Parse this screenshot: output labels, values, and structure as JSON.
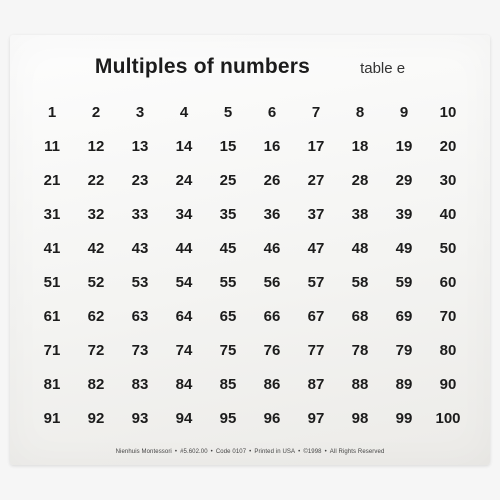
{
  "header": {
    "title": "Multiples of numbers",
    "table_label": "table e"
  },
  "grid": {
    "type": "table",
    "columns": 10,
    "rows": [
      [
        "1",
        "2",
        "3",
        "4",
        "5",
        "6",
        "7",
        "8",
        "9",
        "10"
      ],
      [
        "11",
        "12",
        "13",
        "14",
        "15",
        "16",
        "17",
        "18",
        "19",
        "20"
      ],
      [
        "21",
        "22",
        "23",
        "24",
        "25",
        "26",
        "27",
        "28",
        "29",
        "30"
      ],
      [
        "31",
        "32",
        "33",
        "34",
        "35",
        "36",
        "37",
        "38",
        "39",
        "40"
      ],
      [
        "41",
        "42",
        "43",
        "44",
        "45",
        "46",
        "47",
        "48",
        "49",
        "50"
      ],
      [
        "51",
        "52",
        "53",
        "54",
        "55",
        "56",
        "57",
        "58",
        "59",
        "60"
      ],
      [
        "61",
        "62",
        "63",
        "64",
        "65",
        "66",
        "67",
        "68",
        "69",
        "70"
      ],
      [
        "71",
        "72",
        "73",
        "74",
        "75",
        "76",
        "77",
        "78",
        "79",
        "80"
      ],
      [
        "81",
        "82",
        "83",
        "84",
        "85",
        "86",
        "87",
        "88",
        "89",
        "90"
      ],
      [
        "91",
        "92",
        "93",
        "94",
        "95",
        "96",
        "97",
        "98",
        "99",
        "100"
      ]
    ],
    "cell_fontsize": 15,
    "cell_fontweight": 700,
    "text_color": "#1c1c1c",
    "background_color": "#f7f7f5"
  },
  "footer": {
    "parts": [
      "Nienhuis Montessori",
      "#5.602.00",
      "Code 0107",
      "Printed in USA",
      "©1998",
      "All Rights Reserved"
    ],
    "separator": "•"
  }
}
